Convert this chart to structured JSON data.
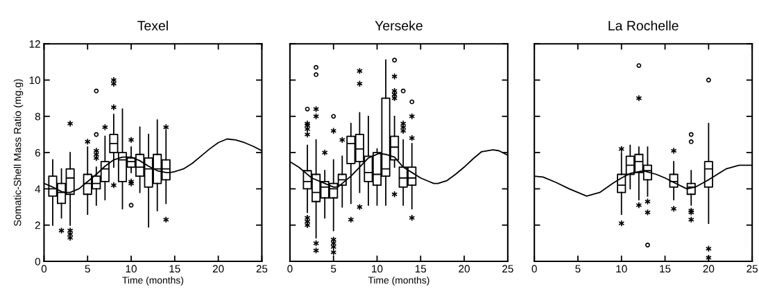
{
  "chart_data": [
    {
      "type": "box",
      "title": "Texel",
      "xlabel": "Time (months)",
      "ylabel": "Somatic-Shell Mass Ratio (mg.g)",
      "xlim": [
        0,
        25
      ],
      "xticks": [
        0,
        5,
        10,
        15,
        20,
        25
      ],
      "ylim": [
        0,
        12
      ],
      "yticks": [
        0,
        2,
        4,
        6,
        8,
        10,
        12
      ],
      "grid": false,
      "legend": false,
      "x": [
        1,
        2,
        3,
        5,
        6,
        7,
        8,
        9,
        10,
        11,
        12,
        13,
        14
      ],
      "boxes": [
        {
          "low": 2.0,
          "q1": 3.6,
          "median": 4.0,
          "q3": 4.7,
          "high": 5.6
        },
        {
          "low": 2.4,
          "q1": 3.2,
          "median": 3.8,
          "q3": 4.3,
          "high": 5.1,
          "outliers": [
            1.7
          ]
        },
        {
          "low": 2.0,
          "q1": 3.7,
          "median": 4.6,
          "q3": 5.1,
          "high": 6.0,
          "outliers": [
            7.6,
            1.7,
            1.5,
            1.3
          ]
        },
        {
          "low": 2.6,
          "q1": 3.7,
          "median": 4.3,
          "q3": 4.8,
          "high": 6.3,
          "outliers": [
            6.6
          ]
        },
        {
          "low": 3.1,
          "q1": 4.0,
          "median": 4.3,
          "q3": 4.7,
          "high": 5.2,
          "outliers": [
            6.1,
            5.9,
            5.7
          ]
        },
        {
          "low": 3.4,
          "q1": 4.4,
          "median": 5.1,
          "q3": 5.5,
          "high": 6.9,
          "outliers": [
            7.4
          ]
        },
        {
          "low": 5.2,
          "q1": 6.0,
          "median": 6.5,
          "q3": 7.0,
          "high": 8.1,
          "outliers": [
            10.0,
            9.8,
            8.5,
            4.2
          ]
        },
        {
          "low": 2.9,
          "q1": 4.4,
          "median": 5.6,
          "q3": 6.0,
          "high": 8.4
        },
        {
          "low": 4.9,
          "q1": 5.2,
          "median": 5.5,
          "q3": 5.7,
          "high": 6.3,
          "outliers": [
            6.7,
            4.4,
            4.3
          ]
        },
        {
          "low": 3.8,
          "q1": 4.7,
          "median": 5.2,
          "q3": 5.9,
          "high": 7.4
        },
        {
          "low": 1.9,
          "q1": 4.1,
          "median": 5.1,
          "q3": 5.7,
          "high": 7.0
        },
        {
          "low": 2.8,
          "q1": 4.3,
          "median": 5.1,
          "q3": 5.9,
          "high": 7.8
        },
        {
          "low": 3.2,
          "q1": 4.5,
          "median": 5.1,
          "q3": 5.6,
          "high": 7.2,
          "outliers": [
            7.4,
            2.3
          ]
        }
      ],
      "series": [
        {
          "type": "line",
          "color": "#000000",
          "x": [
            0,
            1,
            2,
            2.5,
            3,
            4,
            5,
            6,
            7,
            8,
            9,
            10,
            11,
            12,
            13,
            14,
            14.5,
            15,
            16,
            17,
            18,
            19,
            20,
            21,
            22,
            23,
            24,
            25
          ],
          "values": [
            4.3,
            4.1,
            3.85,
            3.8,
            3.8,
            4.0,
            4.4,
            4.8,
            5.25,
            5.6,
            5.75,
            5.75,
            5.55,
            5.25,
            5.0,
            4.9,
            4.9,
            4.95,
            5.1,
            5.4,
            5.8,
            6.2,
            6.55,
            6.75,
            6.7,
            6.55,
            6.35,
            6.1
          ]
        },
        {
          "type": "scatter",
          "marker": "circle",
          "color": "#000000",
          "x": [
            6,
            6,
            10
          ],
          "values": [
            9.4,
            7.0,
            3.1
          ]
        }
      ]
    },
    {
      "type": "box",
      "title": "Yerseke",
      "xlabel": "Time (months)",
      "xlim": [
        0,
        25
      ],
      "xticks": [
        0,
        5,
        10,
        15,
        20,
        25
      ],
      "ylim": [
        0,
        12
      ],
      "yticks": [
        0,
        2,
        4,
        6,
        8,
        10,
        12
      ],
      "tick_labels": "x",
      "grid": false,
      "legend": false,
      "x": [
        2,
        3,
        4,
        5,
        6,
        7,
        8,
        9,
        10,
        11,
        12,
        13,
        14
      ],
      "boxes": [
        {
          "low": 2.7,
          "q1": 4.0,
          "median": 4.4,
          "q3": 5.0,
          "high": 6.4,
          "outliers": [
            7.6,
            7.5,
            7.3,
            7.0,
            2.4,
            2.2,
            2.0
          ]
        },
        {
          "low": 1.3,
          "q1": 3.3,
          "median": 3.8,
          "q3": 4.8,
          "high": 6.7,
          "outliers": [
            8.4,
            8.0,
            1.0,
            0.6
          ]
        },
        {
          "low": 2.4,
          "q1": 3.5,
          "median": 4.1,
          "q3": 4.4,
          "high": 5.0,
          "outliers": [
            6.0
          ]
        },
        {
          "low": 1.7,
          "q1": 3.5,
          "median": 4.0,
          "q3": 4.3,
          "high": 5.6,
          "outliers": [
            7.2,
            1.2,
            1.0,
            0.8,
            0.5
          ]
        },
        {
          "low": 3.0,
          "q1": 4.2,
          "median": 4.5,
          "q3": 4.8,
          "high": 5.8,
          "outliers": [
            6.7
          ]
        },
        {
          "low": 3.2,
          "q1": 5.4,
          "median": 6.5,
          "q3": 6.9,
          "high": 7.6,
          "outliers": [
            2.3
          ]
        },
        {
          "low": 3.8,
          "q1": 5.5,
          "median": 6.2,
          "q3": 7.0,
          "high": 8.2,
          "outliers": [
            10.5,
            9.8,
            3.0
          ]
        },
        {
          "low": 3.1,
          "q1": 4.4,
          "median": 4.9,
          "q3": 5.8,
          "high": 8.0
        },
        {
          "low": 3.1,
          "q1": 4.2,
          "median": 4.8,
          "q3": 6.0,
          "high": 6.2
        },
        {
          "low": 3.1,
          "q1": 4.7,
          "median": 5.1,
          "q3": 9.0,
          "high": 11.1
        },
        {
          "low": 5.2,
          "q1": 5.6,
          "median": 6.3,
          "q3": 6.9,
          "high": 8.0,
          "outliers": [
            10.2,
            9.4,
            9.2,
            9.0,
            3.7
          ]
        },
        {
          "low": 3.1,
          "q1": 4.1,
          "median": 4.6,
          "q3": 5.2,
          "high": 6.7,
          "outliers": [
            7.6,
            7.4,
            7.2
          ]
        },
        {
          "low": 2.9,
          "q1": 4.2,
          "median": 4.6,
          "q3": 5.2,
          "high": 6.5,
          "outliers": [
            8.0,
            6.8,
            2.4
          ]
        }
      ],
      "series": [
        {
          "type": "line",
          "color": "#000000",
          "x": [
            0,
            1,
            2.5,
            4,
            5,
            5.5,
            6,
            7,
            8,
            9,
            10.2,
            11,
            12,
            13,
            14,
            15,
            16,
            16.5,
            17,
            18,
            19,
            20,
            21,
            22,
            23.3,
            24,
            25
          ],
          "values": [
            5.5,
            5.2,
            4.6,
            4.3,
            4.1,
            4.1,
            4.3,
            4.7,
            5.2,
            5.7,
            5.95,
            5.9,
            5.75,
            5.2,
            4.9,
            4.6,
            4.4,
            4.3,
            4.3,
            4.45,
            4.8,
            5.2,
            5.65,
            6.05,
            6.15,
            6.1,
            5.85
          ]
        },
        {
          "type": "scatter",
          "marker": "circle",
          "color": "#000000",
          "x": [
            2,
            3,
            3,
            5,
            12,
            13,
            14
          ],
          "values": [
            8.4,
            10.7,
            10.3,
            8.0,
            11.1,
            9.4,
            8.8
          ]
        }
      ]
    },
    {
      "type": "box",
      "title": "La Rochelle",
      "xlim": [
        0,
        25
      ],
      "xticks": [
        0,
        5,
        10,
        15,
        20,
        25
      ],
      "ylim": [
        0,
        12
      ],
      "yticks": [
        0,
        2,
        4,
        6,
        8,
        10,
        12
      ],
      "tick_labels": "x",
      "grid": false,
      "legend": false,
      "x": [
        10,
        11,
        12,
        13,
        16,
        18,
        20
      ],
      "boxes": [
        {
          "low": 2.6,
          "q1": 3.8,
          "median": 4.2,
          "q3": 4.8,
          "high": 6.0,
          "outliers": [
            6.2,
            2.1
          ]
        },
        {
          "low": 4.0,
          "q1": 4.8,
          "median": 5.3,
          "q3": 5.8,
          "high": 6.4
        },
        {
          "low": 3.4,
          "q1": 4.9,
          "median": 5.5,
          "q3": 5.9,
          "high": 6.3,
          "outliers": [
            9.0,
            3.1
          ]
        },
        {
          "low": 3.6,
          "q1": 4.5,
          "median": 5.0,
          "q3": 5.3,
          "high": 6.3,
          "outliers": [
            3.3,
            2.7
          ]
        },
        {
          "low": 3.4,
          "q1": 4.1,
          "median": 4.4,
          "q3": 4.8,
          "high": 5.5,
          "outliers": [
            6.1,
            2.9
          ]
        },
        {
          "low": 3.1,
          "q1": 3.7,
          "median": 4.1,
          "q3": 4.3,
          "high": 5.0,
          "outliers": [
            2.8,
            2.7,
            2.3
          ]
        },
        {
          "low": 2.1,
          "q1": 4.1,
          "median": 5.1,
          "q3": 5.5,
          "high": 7.6,
          "outliers": [
            0.7,
            0.2
          ]
        }
      ],
      "series": [
        {
          "type": "line",
          "color": "#000000",
          "x": [
            0,
            1,
            2.5,
            4,
            5,
            6,
            7.5,
            9,
            10,
            11,
            12.5,
            14,
            15,
            16,
            17.5,
            18.5,
            20,
            21,
            22,
            23.5,
            25
          ],
          "values": [
            4.7,
            4.65,
            4.35,
            4.0,
            3.8,
            3.6,
            3.8,
            4.3,
            4.6,
            4.85,
            5.0,
            4.8,
            4.6,
            4.35,
            4.0,
            4.1,
            4.5,
            4.8,
            5.1,
            5.3,
            5.3
          ]
        },
        {
          "type": "scatter",
          "marker": "circle",
          "color": "#000000",
          "x": [
            12,
            13,
            18,
            18,
            20
          ],
          "values": [
            10.8,
            0.9,
            7.0,
            6.6,
            10.0
          ]
        }
      ]
    }
  ]
}
